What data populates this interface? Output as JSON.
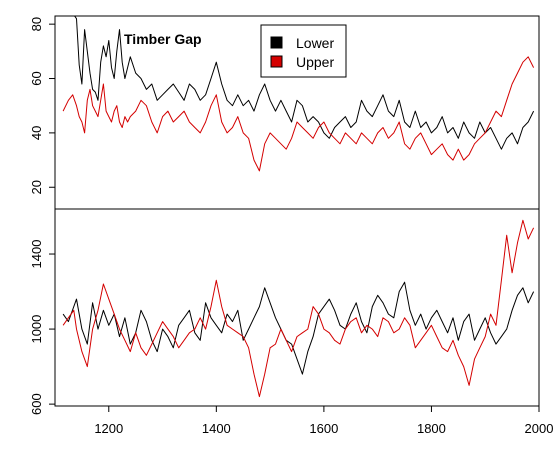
{
  "chart_data": {
    "type": "line",
    "panel_title": "Timber Gap",
    "legend": [
      {
        "label": "Lower",
        "color": "#000000"
      },
      {
        "label": "Upper",
        "color": "#d40000"
      }
    ],
    "x_ticks": [
      1200,
      1400,
      1600,
      1800,
      2000
    ],
    "xlim": [
      1100,
      2000
    ],
    "panels": [
      {
        "name": "top",
        "ylim": [
          12,
          83
        ],
        "y_ticks": [
          20,
          40,
          60,
          80
        ],
        "series": [
          {
            "name": "Lower",
            "color": "#000000",
            "x": [
              1115,
              1125,
              1133,
              1140,
              1145,
              1150,
              1155,
              1160,
              1165,
              1170,
              1175,
              1180,
              1185,
              1190,
              1195,
              1200,
              1205,
              1210,
              1215,
              1220,
              1225,
              1230,
              1235,
              1240,
              1250,
              1260,
              1270,
              1280,
              1290,
              1300,
              1310,
              1320,
              1330,
              1340,
              1350,
              1360,
              1370,
              1380,
              1390,
              1400,
              1410,
              1420,
              1430,
              1440,
              1450,
              1460,
              1470,
              1480,
              1490,
              1500,
              1510,
              1520,
              1530,
              1540,
              1550,
              1560,
              1570,
              1580,
              1590,
              1600,
              1610,
              1620,
              1630,
              1640,
              1650,
              1660,
              1670,
              1680,
              1690,
              1700,
              1710,
              1720,
              1730,
              1740,
              1750,
              1760,
              1770,
              1780,
              1790,
              1800,
              1810,
              1820,
              1830,
              1840,
              1850,
              1860,
              1870,
              1880,
              1890,
              1900,
              1910,
              1920,
              1930,
              1940,
              1950,
              1960,
              1970,
              1980,
              1990
            ],
            "y": [
              88,
              86,
              84,
              82,
              65,
              58,
              78,
              70,
              62,
              56,
              55,
              52,
              66,
              72,
              68,
              74,
              64,
              60,
              70,
              78,
              66,
              60,
              64,
              68,
              62,
              60,
              56,
              58,
              52,
              54,
              56,
              58,
              55,
              52,
              58,
              56,
              52,
              54,
              60,
              66,
              58,
              52,
              50,
              54,
              50,
              52,
              48,
              54,
              58,
              52,
              48,
              52,
              48,
              44,
              52,
              50,
              44,
              46,
              44,
              40,
              38,
              42,
              44,
              46,
              42,
              44,
              52,
              48,
              46,
              50,
              54,
              48,
              46,
              52,
              44,
              42,
              48,
              42,
              44,
              40,
              42,
              46,
              40,
              42,
              38,
              44,
              40,
              38,
              44,
              40,
              42,
              38,
              34,
              38,
              40,
              36,
              42,
              44,
              48
            ]
          },
          {
            "name": "Upper",
            "color": "#d40000",
            "x": [
              1115,
              1125,
              1133,
              1140,
              1145,
              1150,
              1155,
              1160,
              1165,
              1170,
              1175,
              1180,
              1185,
              1190,
              1195,
              1200,
              1205,
              1210,
              1215,
              1220,
              1225,
              1230,
              1235,
              1240,
              1250,
              1260,
              1270,
              1280,
              1290,
              1300,
              1310,
              1320,
              1330,
              1340,
              1350,
              1360,
              1370,
              1380,
              1390,
              1400,
              1410,
              1420,
              1430,
              1440,
              1450,
              1460,
              1470,
              1480,
              1490,
              1500,
              1510,
              1520,
              1530,
              1540,
              1550,
              1560,
              1570,
              1580,
              1590,
              1600,
              1610,
              1620,
              1630,
              1640,
              1650,
              1660,
              1670,
              1680,
              1690,
              1700,
              1710,
              1720,
              1730,
              1740,
              1750,
              1760,
              1770,
              1780,
              1790,
              1800,
              1810,
              1820,
              1830,
              1840,
              1850,
              1860,
              1870,
              1880,
              1890,
              1900,
              1910,
              1920,
              1930,
              1940,
              1950,
              1960,
              1970,
              1980,
              1990
            ],
            "y": [
              48,
              52,
              54,
              50,
              46,
              44,
              40,
              52,
              56,
              50,
              48,
              46,
              52,
              58,
              48,
              46,
              44,
              48,
              50,
              44,
              42,
              46,
              44,
              46,
              48,
              52,
              50,
              44,
              40,
              46,
              48,
              44,
              46,
              48,
              44,
              42,
              40,
              44,
              50,
              54,
              44,
              40,
              42,
              46,
              40,
              38,
              30,
              26,
              36,
              40,
              38,
              36,
              34,
              38,
              44,
              42,
              40,
              38,
              42,
              44,
              40,
              38,
              36,
              40,
              38,
              36,
              40,
              38,
              36,
              40,
              42,
              38,
              40,
              44,
              36,
              34,
              38,
              40,
              36,
              32,
              34,
              36,
              32,
              30,
              34,
              30,
              32,
              36,
              38,
              40,
              44,
              48,
              46,
              52,
              58,
              62,
              66,
              68,
              64
            ]
          }
        ]
      },
      {
        "name": "bottom",
        "ylim": [
          590,
          1640
        ],
        "y_ticks": [
          600,
          1000,
          1400
        ],
        "series": [
          {
            "name": "Lower",
            "color": "#000000",
            "x": [
              1115,
              1125,
              1135,
              1140,
              1150,
              1160,
              1170,
              1180,
              1190,
              1200,
              1210,
              1220,
              1230,
              1240,
              1250,
              1260,
              1270,
              1280,
              1290,
              1300,
              1310,
              1320,
              1330,
              1340,
              1350,
              1360,
              1370,
              1380,
              1390,
              1400,
              1410,
              1420,
              1430,
              1440,
              1450,
              1460,
              1470,
              1480,
              1490,
              1500,
              1510,
              1520,
              1530,
              1540,
              1550,
              1560,
              1570,
              1580,
              1590,
              1600,
              1610,
              1620,
              1630,
              1640,
              1650,
              1660,
              1670,
              1680,
              1690,
              1700,
              1710,
              1720,
              1730,
              1740,
              1750,
              1760,
              1770,
              1780,
              1790,
              1800,
              1810,
              1820,
              1830,
              1840,
              1850,
              1860,
              1870,
              1880,
              1890,
              1900,
              1910,
              1920,
              1930,
              1940,
              1950,
              1960,
              1970,
              1980,
              1990
            ],
            "y": [
              1080,
              1040,
              1120,
              1160,
              1000,
              920,
              1140,
              1000,
              1100,
              1020,
              1080,
              960,
              1060,
              920,
              980,
              1100,
              1040,
              940,
              880,
              1000,
              960,
              900,
              1020,
              1060,
              1100,
              980,
              940,
              1140,
              1060,
              1020,
              980,
              1080,
              1040,
              1100,
              940,
              1000,
              1060,
              1120,
              1220,
              1140,
              1060,
              1000,
              940,
              920,
              840,
              760,
              880,
              960,
              1080,
              1120,
              1160,
              1100,
              1020,
              1000,
              1080,
              1140,
              1040,
              980,
              1120,
              1180,
              1140,
              1080,
              1060,
              1200,
              1250,
              1100,
              1020,
              1080,
              1000,
              1060,
              1100,
              1040,
              980,
              1060,
              940,
              1040,
              1080,
              940,
              1000,
              1060,
              980,
              920,
              960,
              1000,
              1100,
              1180,
              1220,
              1140,
              1200
            ]
          },
          {
            "name": "Upper",
            "color": "#d40000",
            "x": [
              1115,
              1125,
              1135,
              1140,
              1150,
              1160,
              1170,
              1180,
              1190,
              1200,
              1210,
              1220,
              1230,
              1240,
              1250,
              1260,
              1270,
              1280,
              1290,
              1300,
              1310,
              1320,
              1330,
              1340,
              1350,
              1360,
              1370,
              1380,
              1390,
              1400,
              1410,
              1420,
              1430,
              1440,
              1450,
              1460,
              1470,
              1480,
              1490,
              1500,
              1510,
              1520,
              1530,
              1540,
              1550,
              1560,
              1570,
              1580,
              1590,
              1600,
              1610,
              1620,
              1630,
              1640,
              1650,
              1660,
              1670,
              1680,
              1690,
              1700,
              1710,
              1720,
              1730,
              1740,
              1750,
              1760,
              1770,
              1780,
              1790,
              1800,
              1810,
              1820,
              1830,
              1840,
              1850,
              1860,
              1870,
              1880,
              1890,
              1900,
              1910,
              1920,
              1930,
              1940,
              1950,
              1960,
              1970,
              1980,
              1990
            ],
            "y": [
              1020,
              1060,
              1100,
              1000,
              880,
              800,
              1000,
              1100,
              1240,
              1160,
              1080,
              1000,
              940,
              880,
              980,
              900,
              860,
              920,
              980,
              1040,
              1000,
              960,
              900,
              940,
              980,
              1000,
              1060,
              1000,
              1120,
              1260,
              1120,
              1020,
              1000,
              980,
              960,
              900,
              760,
              640,
              760,
              900,
              920,
              1000,
              940,
              880,
              960,
              980,
              1000,
              1120,
              1080,
              1000,
              980,
              940,
              920,
              1000,
              1040,
              1060,
              980,
              1020,
              1000,
              960,
              1060,
              1040,
              980,
              1000,
              1060,
              1020,
              900,
              940,
              980,
              1020,
              960,
              900,
              880,
              940,
              860,
              800,
              700,
              840,
              900,
              960,
              1080,
              1020,
              1260,
              1500,
              1300,
              1460,
              1580,
              1480,
              1540
            ]
          }
        ]
      }
    ]
  }
}
